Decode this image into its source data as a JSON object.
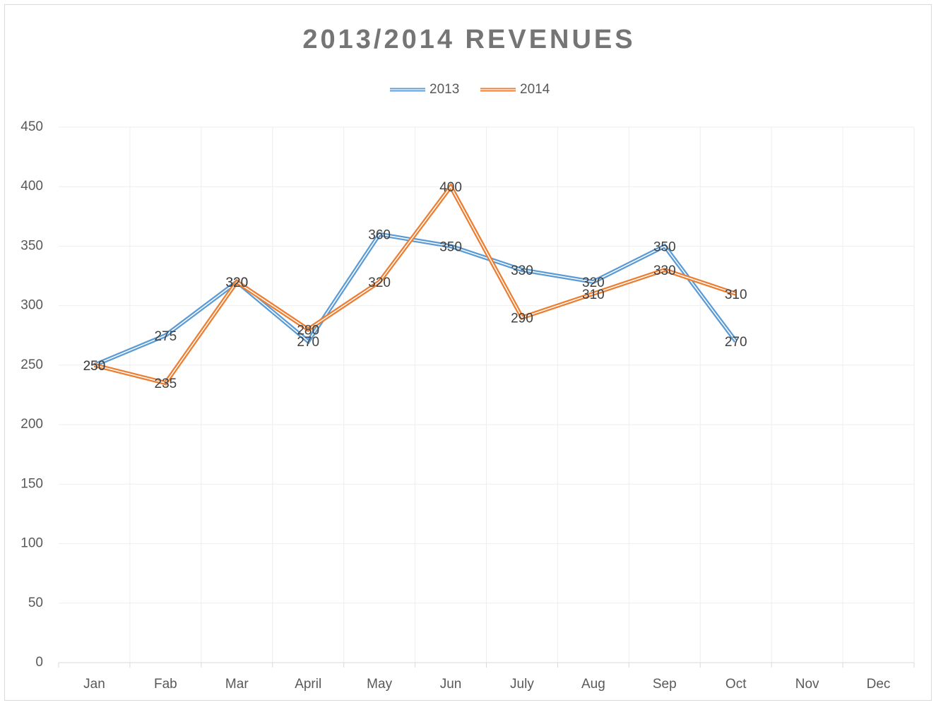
{
  "chart_data": {
    "type": "line",
    "title": "2013/2014 REVENUES",
    "categories": [
      "Jan",
      "Fab",
      "Mar",
      "April",
      "May",
      "Jun",
      "July",
      "Aug",
      "Sep",
      "Oct",
      "Nov",
      "Dec"
    ],
    "series": [
      {
        "name": "2013",
        "color": "#5b9bd5",
        "values": [
          250,
          275,
          320,
          270,
          360,
          350,
          330,
          320,
          350,
          270,
          null,
          null
        ]
      },
      {
        "name": "2014",
        "color": "#ed7d31",
        "values": [
          250,
          235,
          320,
          280,
          320,
          400,
          290,
          310,
          330,
          310,
          null,
          null
        ]
      }
    ],
    "ylim": [
      0,
      450
    ],
    "yticks": [
      0,
      50,
      100,
      150,
      200,
      250,
      300,
      350,
      400,
      450
    ],
    "grid": true,
    "legend": "top"
  }
}
